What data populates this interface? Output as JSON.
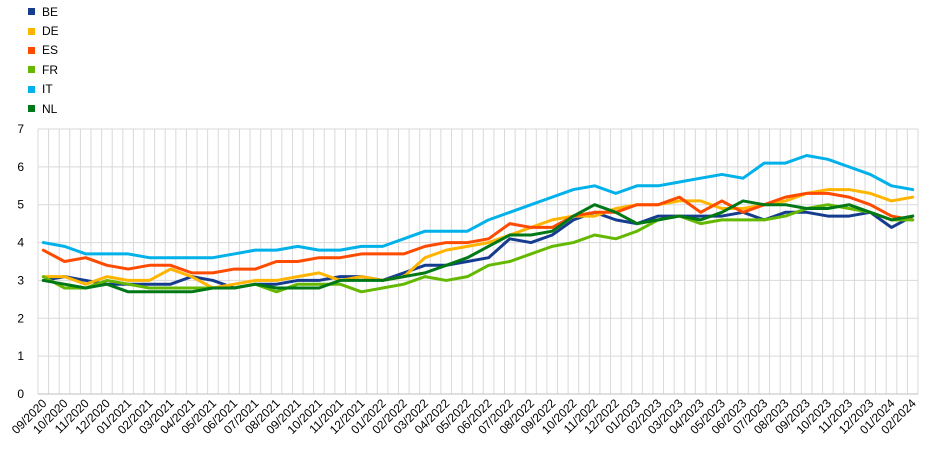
{
  "chart_data": {
    "type": "line",
    "title": "",
    "xlabel": "",
    "ylabel": "",
    "ylim": [
      0,
      7
    ],
    "yticks": [
      0,
      1,
      2,
      3,
      4,
      5,
      6,
      7
    ],
    "grid": true,
    "legend_position": "top-left",
    "x": [
      "09/2020",
      "10/2020",
      "11/2020",
      "12/2020",
      "01/2021",
      "02/2021",
      "03/2021",
      "04/2021",
      "05/2021",
      "06/2021",
      "07/2021",
      "08/2021",
      "09/2021",
      "10/2021",
      "11/2021",
      "12/2021",
      "01/2022",
      "02/2022",
      "03/2022",
      "04/2022",
      "05/2022",
      "06/2022",
      "07/2022",
      "08/2022",
      "09/2022",
      "10/2022",
      "11/2022",
      "12/2022",
      "01/2023",
      "02/2023",
      "03/2023",
      "04/2023",
      "05/2023",
      "06/2023",
      "07/2023",
      "08/2023",
      "09/2023",
      "10/2023",
      "11/2023",
      "12/2023",
      "01/2024",
      "02/2024"
    ],
    "x_fine": [
      "09/2020",
      "",
      "10/2020",
      "",
      "11/2020",
      "",
      "12/2020",
      "",
      "01/2021",
      "",
      "02/2021",
      "",
      "03/2021",
      "",
      "04/2021",
      "",
      "05/2021",
      "",
      "06/2021",
      "",
      "07/2021",
      "",
      "08/2021",
      "",
      "09/2021",
      "",
      "10/2021",
      "",
      "11/2021",
      "",
      "12/2021",
      "",
      "01/2022",
      "",
      "02/2022",
      "",
      "03/2022",
      "",
      "04/2022",
      "",
      "05/2022",
      "",
      "06/2022",
      "",
      "07/2022",
      "",
      "08/2022",
      "",
      "09/2022",
      "",
      "10/2022",
      "",
      "11/2022",
      "",
      "12/2022",
      "",
      "01/2023",
      "",
      "02/2023",
      "",
      "03/2023",
      "",
      "04/2023",
      "",
      "05/2023",
      "",
      "06/2023",
      "",
      "07/2023",
      "",
      "08/2023",
      "",
      "09/2023",
      "",
      "10/2023",
      "",
      "11/2023",
      "",
      "12/2023",
      "",
      "01/2024",
      "",
      "02/2024"
    ],
    "series": [
      {
        "name": "BE",
        "color": "#153c8f",
        "values": [
          3.0,
          3.1,
          3.0,
          2.9,
          2.9,
          2.9,
          2.9,
          3.1,
          3.0,
          2.8,
          2.9,
          2.9,
          3.0,
          3.0,
          3.1,
          3.1,
          3.0,
          3.2,
          3.4,
          3.4,
          3.5,
          3.6,
          4.1,
          4.0,
          4.2,
          4.6,
          4.8,
          4.6,
          4.5,
          4.7,
          4.7,
          4.7,
          4.7,
          4.8,
          4.6,
          4.8,
          4.8,
          4.7,
          4.7,
          4.8,
          4.4,
          4.7
        ]
      },
      {
        "name": "DE",
        "color": "#ffb400",
        "values": [
          3.1,
          3.1,
          2.9,
          3.1,
          3.0,
          3.0,
          3.3,
          3.1,
          2.8,
          2.9,
          3.0,
          3.0,
          3.1,
          3.2,
          3.0,
          3.1,
          3.0,
          3.1,
          3.6,
          3.8,
          3.9,
          4.0,
          4.2,
          4.4,
          4.6,
          4.7,
          4.7,
          4.9,
          5.0,
          5.0,
          5.1,
          5.1,
          4.9,
          4.9,
          5.0,
          5.1,
          5.3,
          5.4,
          5.4,
          5.3,
          5.1,
          5.2
        ]
      },
      {
        "name": "ES",
        "color": "#ff4b00",
        "values": [
          3.8,
          3.5,
          3.6,
          3.4,
          3.3,
          3.4,
          3.4,
          3.2,
          3.2,
          3.3,
          3.3,
          3.5,
          3.5,
          3.6,
          3.6,
          3.7,
          3.7,
          3.7,
          3.9,
          4.0,
          4.0,
          4.1,
          4.5,
          4.4,
          4.4,
          4.7,
          4.8,
          4.8,
          5.0,
          5.0,
          5.2,
          4.8,
          5.1,
          4.8,
          5.0,
          5.2,
          5.3,
          5.3,
          5.2,
          5.0,
          4.7,
          4.6
        ]
      },
      {
        "name": "FR",
        "color": "#65b800",
        "values": [
          3.1,
          2.8,
          2.8,
          3.0,
          2.9,
          2.8,
          2.8,
          2.8,
          2.8,
          2.8,
          2.9,
          2.7,
          2.9,
          2.9,
          2.9,
          2.7,
          2.8,
          2.9,
          3.1,
          3.0,
          3.1,
          3.4,
          3.5,
          3.7,
          3.9,
          4.0,
          4.2,
          4.1,
          4.3,
          4.6,
          4.7,
          4.5,
          4.6,
          4.6,
          4.6,
          4.7,
          4.9,
          5.0,
          4.9,
          4.8,
          4.6,
          4.6
        ]
      },
      {
        "name": "IT",
        "color": "#00b1ea",
        "values": [
          4.0,
          3.9,
          3.7,
          3.7,
          3.7,
          3.6,
          3.6,
          3.6,
          3.6,
          3.7,
          3.8,
          3.8,
          3.9,
          3.8,
          3.8,
          3.9,
          3.9,
          4.1,
          4.3,
          4.3,
          4.3,
          4.6,
          4.8,
          5.0,
          5.2,
          5.4,
          5.5,
          5.3,
          5.5,
          5.5,
          5.6,
          5.7,
          5.8,
          5.7,
          6.1,
          6.1,
          6.3,
          6.2,
          6.0,
          5.8,
          5.5,
          5.4
        ]
      },
      {
        "name": "NL",
        "color": "#007816",
        "values": [
          3.0,
          2.9,
          2.8,
          2.9,
          2.7,
          2.7,
          2.7,
          2.7,
          2.8,
          2.8,
          2.9,
          2.8,
          2.8,
          2.8,
          3.0,
          3.0,
          3.0,
          3.1,
          3.2,
          3.4,
          3.6,
          3.9,
          4.2,
          4.2,
          4.3,
          4.7,
          5.0,
          4.8,
          4.5,
          4.6,
          4.7,
          4.6,
          4.8,
          5.1,
          5.0,
          5.0,
          4.9,
          4.9,
          5.0,
          4.8,
          4.6,
          4.7
        ]
      }
    ]
  }
}
